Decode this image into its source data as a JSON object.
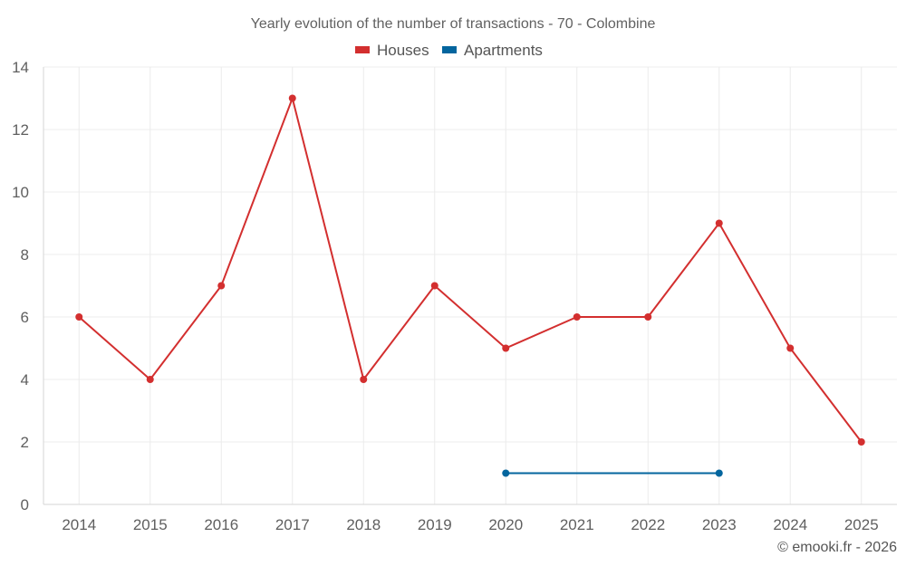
{
  "chart_data": {
    "type": "line",
    "title": "Yearly evolution of the number of transactions - 70 - Colombine",
    "categories": [
      "2014",
      "2015",
      "2016",
      "2017",
      "2018",
      "2019",
      "2020",
      "2021",
      "2022",
      "2023",
      "2024",
      "2025"
    ],
    "series": [
      {
        "name": "Houses",
        "color": "#d32f2f",
        "values": [
          6,
          4,
          7,
          13,
          4,
          7,
          5,
          6,
          6,
          9,
          5,
          2
        ]
      },
      {
        "name": "Apartments",
        "color": "#03659e",
        "values": [
          null,
          null,
          null,
          null,
          null,
          null,
          1,
          null,
          null,
          1,
          null,
          null
        ]
      }
    ],
    "xlabel": "",
    "ylabel": "",
    "ylim": [
      0,
      14
    ],
    "yticks": [
      "0",
      "2",
      "4",
      "6",
      "8",
      "10",
      "12",
      "14"
    ],
    "grid": true,
    "legend_position": "top-center",
    "copyright": "© emooki.fr - 2026"
  }
}
